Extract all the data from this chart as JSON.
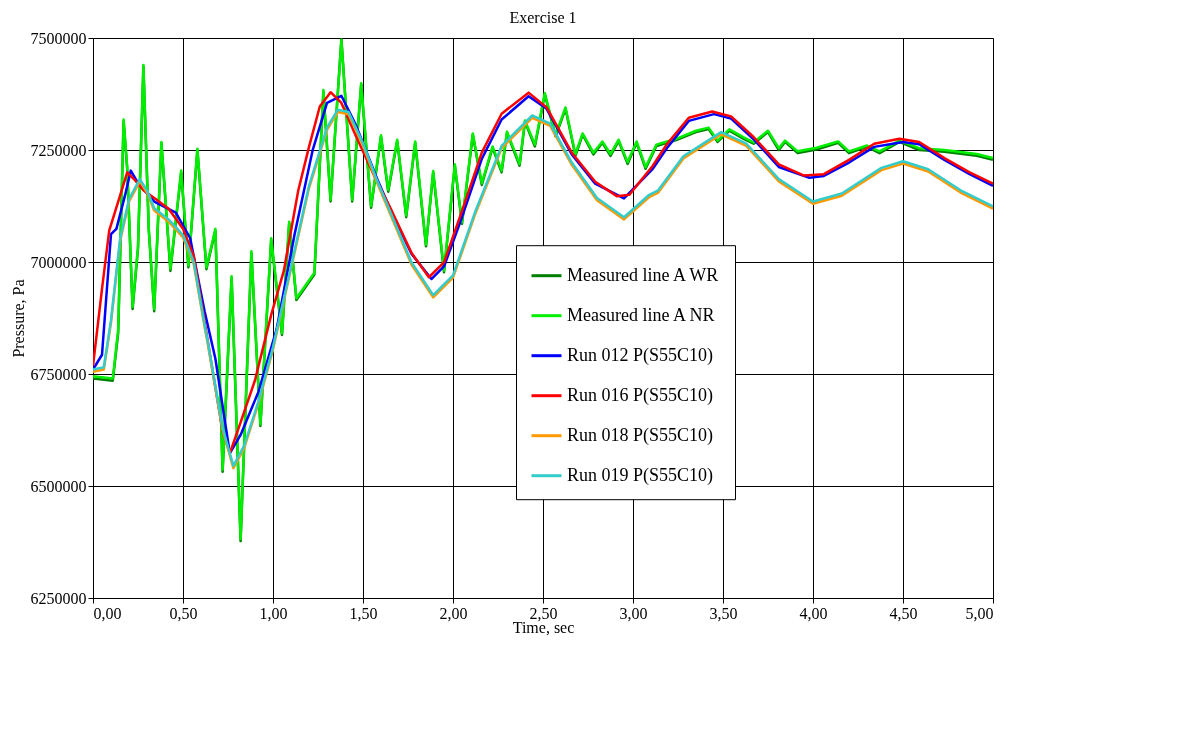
{
  "chart_data": {
    "type": "line",
    "title": "Exercise 1",
    "xlabel": "Time, sec",
    "ylabel": "Pressure, Pa",
    "xlim": [
      0,
      5
    ],
    "xticks": [
      {
        "value": 0,
        "label": "0,00"
      },
      {
        "value": 0.5,
        "label": "0,50"
      },
      {
        "value": 1,
        "label": "1,00"
      },
      {
        "value": 1.5,
        "label": "1,50"
      },
      {
        "value": 2,
        "label": "2,00"
      },
      {
        "value": 2.5,
        "label": "2,50"
      },
      {
        "value": 3,
        "label": "3,00"
      },
      {
        "value": 3.5,
        "label": "3,50"
      },
      {
        "value": 4,
        "label": "4,00"
      },
      {
        "value": 4.5,
        "label": "4,50"
      },
      {
        "value": 5,
        "label": "5,00"
      }
    ],
    "ylim": [
      6250000,
      7500000
    ],
    "yticks": [
      6250000,
      6500000,
      6750000,
      7000000,
      7250000,
      7500000
    ],
    "grid": true,
    "legend": "bottom right",
    "marker": "none",
    "line_style": "solid",
    "series": [
      {
        "name": "Measured line A WR",
        "color": "#008000",
        "x": [
          0,
          0.11,
          0.14,
          0.17,
          0.19,
          0.22,
          0.25,
          0.28,
          0.31,
          0.34,
          0.38,
          0.43,
          0.49,
          0.53,
          0.58,
          0.63,
          0.68,
          0.72,
          0.77,
          0.82,
          0.88,
          0.93,
          0.99,
          1.05,
          1.09,
          1.13,
          1.23,
          1.28,
          1.32,
          1.38,
          1.44,
          1.49,
          1.545,
          1.6,
          1.64,
          1.69,
          1.74,
          1.79,
          1.85,
          1.89,
          1.95,
          2.01,
          2.05,
          2.11,
          2.16,
          2.22,
          2.27,
          2.3,
          2.37,
          2.4,
          2.455,
          2.51,
          2.57,
          2.625,
          2.68,
          2.72,
          2.78,
          2.83,
          2.875,
          2.92,
          2.97,
          3.02,
          3.07,
          3.13,
          3.24,
          3.35,
          3.42,
          3.47,
          3.535,
          3.615,
          3.67,
          3.75,
          3.81,
          3.845,
          3.915,
          4.02,
          4.14,
          4.2,
          4.3,
          4.37,
          4.48,
          4.59,
          4.73,
          4.91,
          5.0
        ],
        "values": [
          6740000,
          6735000,
          6842000,
          7314000,
          7208000,
          6895000,
          7030000,
          7436000,
          7070000,
          6890000,
          7265000,
          6980000,
          7200000,
          6988000,
          7250000,
          6984000,
          7070000,
          6532000,
          6964000,
          6377000,
          7020000,
          6634000,
          7049000,
          6837000,
          7086000,
          6915000,
          6972000,
          7380000,
          7135000,
          7498000,
          7135000,
          7396000,
          7121000,
          7280000,
          7157000,
          7270000,
          7100000,
          7266000,
          7035000,
          7200000,
          6977000,
          7215000,
          7085000,
          7284000,
          7172000,
          7255000,
          7200000,
          7288000,
          7215000,
          7313000,
          7258000,
          7374000,
          7280000,
          7342000,
          7237000,
          7284000,
          7240000,
          7266000,
          7237000,
          7270000,
          7219000,
          7266000,
          7208000,
          7259000,
          7272000,
          7290000,
          7297000,
          7268000,
          7293000,
          7275000,
          7264000,
          7290000,
          7250000,
          7268000,
          7243000,
          7251000,
          7266000,
          7243000,
          7257000,
          7243000,
          7268000,
          7250000,
          7246000,
          7237000,
          7228000
        ]
      },
      {
        "name": "Measured line A NR",
        "color": "#00ee00",
        "x": [
          0,
          0.11,
          0.14,
          0.17,
          0.19,
          0.22,
          0.25,
          0.28,
          0.31,
          0.34,
          0.38,
          0.43,
          0.49,
          0.53,
          0.58,
          0.63,
          0.68,
          0.72,
          0.77,
          0.82,
          0.88,
          0.93,
          0.99,
          1.05,
          1.09,
          1.13,
          1.23,
          1.28,
          1.32,
          1.38,
          1.44,
          1.49,
          1.545,
          1.6,
          1.64,
          1.69,
          1.74,
          1.79,
          1.85,
          1.89,
          1.95,
          2.01,
          2.05,
          2.11,
          2.16,
          2.22,
          2.27,
          2.3,
          2.37,
          2.4,
          2.455,
          2.51,
          2.57,
          2.625,
          2.68,
          2.72,
          2.78,
          2.83,
          2.875,
          2.92,
          2.97,
          3.02,
          3.07,
          3.13,
          3.24,
          3.35,
          3.42,
          3.47,
          3.535,
          3.615,
          3.67,
          3.75,
          3.81,
          3.845,
          3.915,
          4.02,
          4.14,
          4.2,
          4.3,
          4.37,
          4.48,
          4.59,
          4.73,
          4.91,
          5.0
        ],
        "values": [
          6745000,
          6740000,
          6850000,
          7318000,
          7212000,
          6900000,
          7035000,
          7440000,
          7074000,
          6895000,
          7268000,
          6985000,
          7204000,
          6992000,
          7253000,
          6988000,
          7074000,
          6537000,
          6968000,
          6382000,
          7024000,
          6638000,
          7053000,
          6841000,
          7090000,
          6919000,
          6976000,
          7384000,
          7139000,
          7495000,
          7139000,
          7399000,
          7125000,
          7283000,
          7161000,
          7273000,
          7104000,
          7269000,
          7039000,
          7203000,
          6981000,
          7218000,
          7089000,
          7287000,
          7176000,
          7258000,
          7204000,
          7291000,
          7219000,
          7316000,
          7262000,
          7377000,
          7284000,
          7345000,
          7241000,
          7287000,
          7244000,
          7269000,
          7241000,
          7273000,
          7223000,
          7269000,
          7212000,
          7262000,
          7275000,
          7293000,
          7300000,
          7271000,
          7296000,
          7278000,
          7267000,
          7293000,
          7254000,
          7271000,
          7247000,
          7255000,
          7269000,
          7247000,
          7260000,
          7247000,
          7271000,
          7254000,
          7250000,
          7241000,
          7232000
        ]
      },
      {
        "name": "Run 012 P(S55C10)",
        "color": "#0000ff",
        "x": [
          0,
          0.05,
          0.1,
          0.13,
          0.18,
          0.21,
          0.25,
          0.34,
          0.46,
          0.54,
          0.62,
          0.68,
          0.76,
          0.82,
          0.92,
          1.02,
          1.12,
          1.22,
          1.3,
          1.38,
          1.46,
          1.58,
          1.66,
          1.77,
          1.88,
          1.95,
          2.05,
          2.16,
          2.27,
          2.42,
          2.52,
          2.66,
          2.79,
          2.95,
          3.11,
          3.19,
          3.31,
          3.45,
          3.545,
          3.67,
          3.81,
          3.98,
          4.06,
          4.2,
          4.34,
          4.5,
          4.59,
          4.73,
          4.87,
          5.0
        ],
        "values": [
          6760000,
          6793000,
          7062000,
          7074000,
          7152000,
          7204000,
          7176000,
          7135000,
          7110000,
          7053000,
          6890000,
          6784000,
          6573000,
          6614000,
          6711000,
          6850000,
          7062000,
          7249000,
          7355000,
          7371000,
          7306000,
          7184000,
          7110000,
          7018000,
          6962000,
          6990000,
          7100000,
          7230000,
          7318000,
          7370000,
          7342000,
          7240000,
          7175000,
          7142000,
          7208000,
          7255000,
          7315000,
          7330000,
          7320000,
          7274000,
          7212000,
          7188000,
          7192000,
          7222000,
          7257000,
          7268000,
          7263000,
          7228000,
          7196000,
          7170000
        ]
      },
      {
        "name": "Run 016 P(S55C10)",
        "color": "#ff0000",
        "x": [
          0,
          0.05,
          0.09,
          0.14,
          0.19,
          0.23,
          0.28,
          0.34,
          0.42,
          0.5,
          0.56,
          0.62,
          0.67,
          0.72,
          0.76,
          0.82,
          0.9,
          0.99,
          1.06,
          1.14,
          1.2,
          1.26,
          1.32,
          1.38,
          1.46,
          1.57,
          1.66,
          1.77,
          1.866,
          1.95,
          2.05,
          2.16,
          2.27,
          2.42,
          2.52,
          2.66,
          2.79,
          2.91,
          2.98,
          3.11,
          3.19,
          3.31,
          3.44,
          3.545,
          3.67,
          3.81,
          3.95,
          4.06,
          4.2,
          4.34,
          4.48,
          4.59,
          4.73,
          4.87,
          5.0
        ],
        "values": [
          6768000,
          6940000,
          7070000,
          7135000,
          7200000,
          7184000,
          7160000,
          7143000,
          7119000,
          7074000,
          7013000,
          6867000,
          6744000,
          6622000,
          6573000,
          6642000,
          6736000,
          6882000,
          6980000,
          7159000,
          7257000,
          7347000,
          7379000,
          7355000,
          7282000,
          7186000,
          7114000,
          7020000,
          6966000,
          6999000,
          7114000,
          7244000,
          7331000,
          7378000,
          7345000,
          7244000,
          7179000,
          7147000,
          7150000,
          7215000,
          7264000,
          7322000,
          7336000,
          7325000,
          7279000,
          7218000,
          7193000,
          7196000,
          7228000,
          7264000,
          7275000,
          7268000,
          7232000,
          7200000,
          7175000
        ]
      },
      {
        "name": "Run 018 P(S55C10)",
        "color": "#ff9900",
        "x": [
          0,
          0.06,
          0.1,
          0.15,
          0.2,
          0.26,
          0.3,
          0.34,
          0.42,
          0.5,
          0.56,
          0.62,
          0.64,
          0.72,
          0.78,
          0.84,
          0.92,
          1.0,
          1.1,
          1.2,
          1.3,
          1.36,
          1.42,
          1.5,
          1.58,
          1.77,
          1.89,
          2.0,
          2.125,
          2.27,
          2.44,
          2.54,
          2.66,
          2.8,
          2.95,
          3.09,
          3.14,
          3.28,
          3.49,
          3.63,
          3.81,
          4.0,
          4.16,
          4.38,
          4.5,
          4.64,
          4.82,
          5.0
        ],
        "values": [
          6755000,
          6760000,
          6865000,
          7045000,
          7135000,
          7180000,
          7155000,
          7115000,
          7090000,
          7055000,
          6995000,
          6855000,
          6812000,
          6625000,
          6540000,
          6585000,
          6685000,
          6805000,
          6985000,
          7165000,
          7295000,
          7335000,
          7330000,
          7260000,
          7175000,
          6994000,
          6921000,
          6965000,
          7109000,
          7254000,
          7322000,
          7304000,
          7217000,
          7138000,
          7095000,
          7145000,
          7155000,
          7231000,
          7285000,
          7259000,
          7180000,
          7130000,
          7148000,
          7205000,
          7220000,
          7202000,
          7155000,
          7119000
        ]
      },
      {
        "name": "Run 019 P(S55C10)",
        "color": "#33cccc",
        "x": [
          0,
          0.06,
          0.1,
          0.15,
          0.2,
          0.26,
          0.3,
          0.34,
          0.42,
          0.5,
          0.56,
          0.62,
          0.64,
          0.72,
          0.78,
          0.84,
          0.92,
          1.0,
          1.1,
          1.2,
          1.3,
          1.36,
          1.42,
          1.5,
          1.58,
          1.77,
          1.89,
          2.0,
          2.125,
          2.27,
          2.44,
          2.54,
          2.66,
          2.8,
          2.95,
          3.09,
          3.14,
          3.28,
          3.49,
          3.63,
          3.81,
          4.0,
          4.16,
          4.38,
          4.5,
          4.64,
          4.82,
          5.0
        ],
        "values": [
          6760000,
          6765000,
          6870000,
          7050000,
          7140000,
          7185000,
          7160000,
          7120000,
          7095000,
          7060000,
          7000000,
          6860000,
          6817000,
          6630000,
          6545000,
          6590000,
          6690000,
          6810000,
          6990000,
          7170000,
          7300000,
          7340000,
          7335000,
          7265000,
          7180000,
          6999000,
          6926000,
          6970000,
          7114000,
          7259000,
          7327000,
          7309000,
          7222000,
          7143000,
          7100000,
          7150000,
          7160000,
          7236000,
          7290000,
          7264000,
          7185000,
          7135000,
          7153000,
          7210000,
          7225000,
          7207000,
          7160000,
          7124000
        ]
      }
    ]
  }
}
